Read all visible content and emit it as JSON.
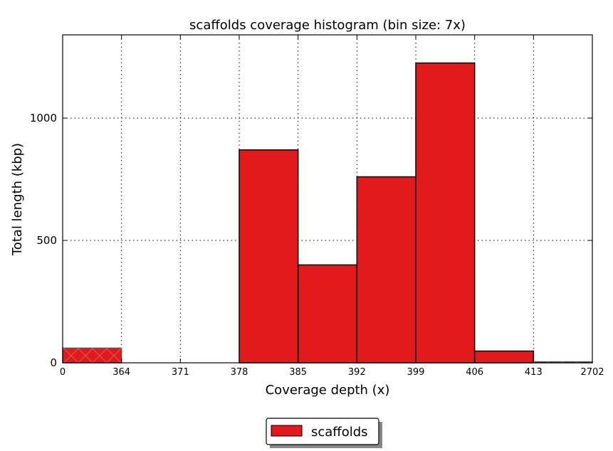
{
  "chart_data": {
    "type": "bar",
    "title": "scaffolds coverage histogram (bin size: 7x)",
    "xlabel": "Coverage depth (x)",
    "ylabel": "Total length (kbp)",
    "xticks": [
      "0",
      "364",
      "371",
      "378",
      "385",
      "392",
      "399",
      "406",
      "413",
      "2702"
    ],
    "yticks": [
      "0",
      "500",
      "1000"
    ],
    "ylim": [
      0,
      1340
    ],
    "grid": true,
    "legend": {
      "placement": "bottom-center",
      "entries": [
        {
          "name": "scaffolds",
          "color": "#e31a1c"
        }
      ]
    },
    "series": [
      {
        "name": "scaffolds",
        "color": "#e31a1c",
        "bins": [
          {
            "range": "0-364",
            "value": 60,
            "hatched": true
          },
          {
            "range": "364-371",
            "value": 0
          },
          {
            "range": "371-378",
            "value": 0
          },
          {
            "range": "378-385",
            "value": 870
          },
          {
            "range": "385-392",
            "value": 400
          },
          {
            "range": "392-399",
            "value": 760
          },
          {
            "range": "399-406",
            "value": 1225
          },
          {
            "range": "406-413",
            "value": 48
          },
          {
            "range": "413-2702",
            "value": 4,
            "hatched": true
          }
        ]
      }
    ]
  }
}
